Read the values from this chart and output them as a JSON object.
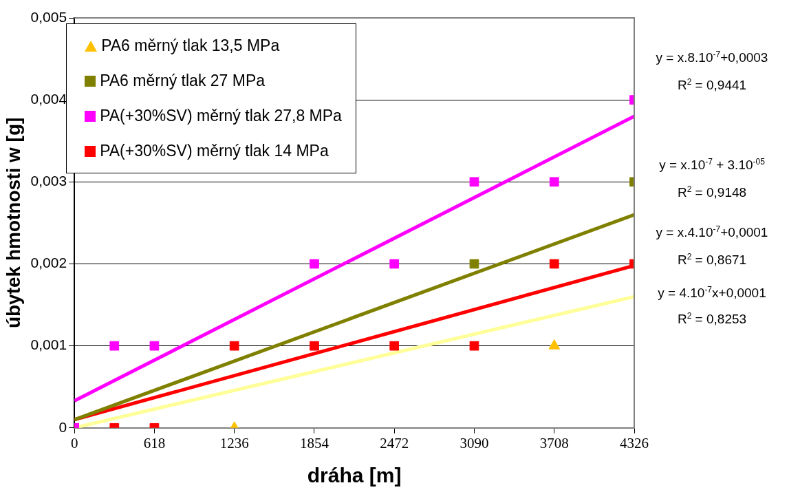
{
  "chart_data": {
    "type": "scatter",
    "xlabel": "dráha [m]",
    "ylabel": "úbytek hmotnosti w [g]",
    "xlim": [
      0,
      4326
    ],
    "xticks": [
      0,
      618,
      1236,
      1854,
      2472,
      3090,
      3708,
      4326
    ],
    "ylim": [
      0,
      0.005
    ],
    "yticks": [
      0,
      {
        "value": 0.001,
        "label": "0,001"
      },
      {
        "value": 0.002,
        "label": "0,002"
      },
      {
        "value": 0.003,
        "label": "0,003"
      },
      {
        "value": 0.004,
        "label": "0,004"
      },
      {
        "value": 0.005,
        "label": "0,005"
      }
    ],
    "grid": "y",
    "legend": "top left",
    "series": [
      {
        "type": "line",
        "color": "#ffff99",
        "marker": "none",
        "x": [
          0,
          4326
        ],
        "values": [
          0,
          0.0016
        ]
      },
      {
        "type": "line",
        "color": "#808000",
        "marker": "none",
        "x": [
          0,
          4326
        ],
        "values": [
          0.0001,
          0.0026
        ]
      },
      {
        "type": "line",
        "color": "#ff0000",
        "marker": "none",
        "x": [
          0,
          4326
        ],
        "values": [
          0.0001,
          0.00198
        ]
      },
      {
        "type": "line",
        "color": "#ff00ff",
        "marker": "none",
        "x": [
          0,
          4326
        ],
        "values": [
          0.00033,
          0.0038
        ]
      },
      {
        "name": "PA6 měrný tlak 13,5 MPa",
        "color": "#ffc000",
        "marker": "triangle",
        "x": [
          1236,
          3708
        ],
        "values": [
          0,
          0.001
        ]
      },
      {
        "name": "PA6 měrný tlak 27 MPa",
        "color": "#808000",
        "marker": "square",
        "x": [
          3090,
          4326
        ],
        "values": [
          0.002,
          0.003
        ]
      },
      {
        "name": "PA(+30%SV) měrný tlak 27,8 MPa",
        "color": "#ff00ff",
        "marker": "square",
        "x": [
          0,
          309,
          618,
          1854,
          2472,
          3090,
          3708,
          4326
        ],
        "values": [
          0,
          0.001,
          0.001,
          0.002,
          0.002,
          0.003,
          0.003,
          0.004
        ]
      },
      {
        "name": "PA(+30%SV) měrný tlak 14 MPa",
        "color": "#ff0000",
        "marker": "square",
        "x": [
          0,
          309,
          618,
          1236,
          1854,
          2472,
          3090,
          3708,
          4326
        ],
        "values": [
          0,
          0,
          0,
          0.001,
          0.001,
          0.001,
          0.001,
          0.002,
          0.002
        ]
      }
    ],
    "annotations": [
      "y = x.8.10$^{-7}$+0,0003",
      "R$^{2}$ = 0,9441",
      "y = x.10$^{-7}$ + 3.10$^{-05}$",
      "R$^{2}$ = 0,9148",
      "y = x.4.10$^{-7}$+0,0001",
      "R$^{2}$ = 0,8671",
      "y = 4.10$^{-7}$x+0,0001",
      "R$^{2}$ = 0,8253"
    ]
  }
}
